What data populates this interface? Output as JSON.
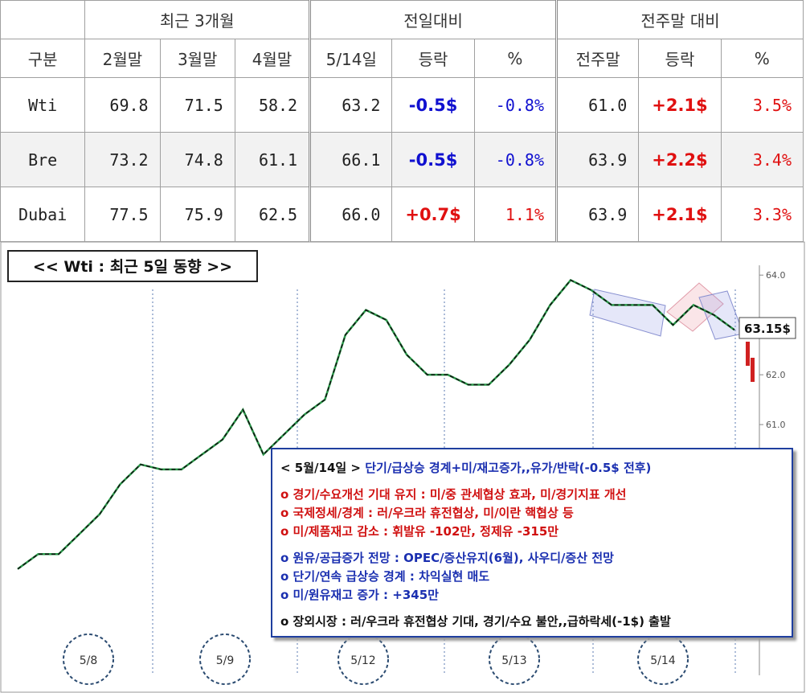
{
  "table": {
    "groups": [
      "최근 3개월",
      "전일대비",
      "전주말 대비"
    ],
    "columns": [
      "구분",
      "2월말",
      "3월말",
      "4월말",
      "5/14일",
      "등락",
      "%",
      "전주말",
      "등락",
      "%"
    ],
    "rows": [
      [
        "Wti",
        "69.8",
        "71.5",
        "58.2",
        "63.2",
        "-0.5$",
        "-0.8%",
        "61.0",
        "+2.1$",
        "3.5%"
      ],
      [
        "Bre",
        "73.2",
        "74.8",
        "61.1",
        "66.1",
        "-0.5$",
        "-0.8%",
        "63.9",
        "+2.2$",
        "3.4%"
      ],
      [
        "Dubai",
        "77.5",
        "75.9",
        "62.5",
        "66.0",
        "+0.7$",
        "1.1%",
        "63.9",
        "+2.1$",
        "3.3%"
      ]
    ]
  },
  "chart_data": {
    "type": "line",
    "title": "<< Wti : 최근 5일 동향 >>",
    "values": [
      58.1,
      58.4,
      58.4,
      58.8,
      59.2,
      59.8,
      60.2,
      60.1,
      60.1,
      60.4,
      60.7,
      61.3,
      60.4,
      60.8,
      61.2,
      61.5,
      62.8,
      63.3,
      63.1,
      62.4,
      62.0,
      62.0,
      61.8,
      61.8,
      62.2,
      62.7,
      63.4,
      63.9,
      63.7,
      63.4,
      63.4,
      63.4,
      63.0,
      63.4,
      63.2,
      62.9
    ],
    "color": "#111",
    "ylim": [
      56,
      64.6
    ],
    "yticks": [
      {
        "value": 64,
        "label": "64.0"
      },
      {
        "value": 62,
        "label": "62.0"
      },
      {
        "value": 61,
        "label": "61.0"
      }
    ],
    "days": [
      "5/8",
      "5/9",
      "5/12",
      "5/13",
      "5/14"
    ],
    "price_label": "63.15$"
  },
  "note": {
    "heading": {
      "date": "< 5월/14일 >",
      "text": "단기/급상승 경계+미/재고증가,,유가/반락(-0.5$ 전후)"
    },
    "red": [
      "o 경기/수요개선 기대 유지 : 미/중 관세협상 효과, 미/경기지표 개선",
      "o 국제정세/경계 : 러/우크라 휴전협상, 미/이란 핵협상 등",
      "o 미/제품재고 감소 : 휘발유 -102만, 정제유 -315만"
    ],
    "blue": [
      "o 원유/공급증가 전망 : OPEC/증산유지(6월), 사우디/증산 전망",
      "o 단기/연속 급상승 경계 : 차익실현 매도",
      "o 미/원유재고 증가 : +345만"
    ],
    "black": "o 장외시장 : 러/우크라 휴전협상 기대, 경기/수요 불안,,급하락세(-1$) 출발"
  }
}
